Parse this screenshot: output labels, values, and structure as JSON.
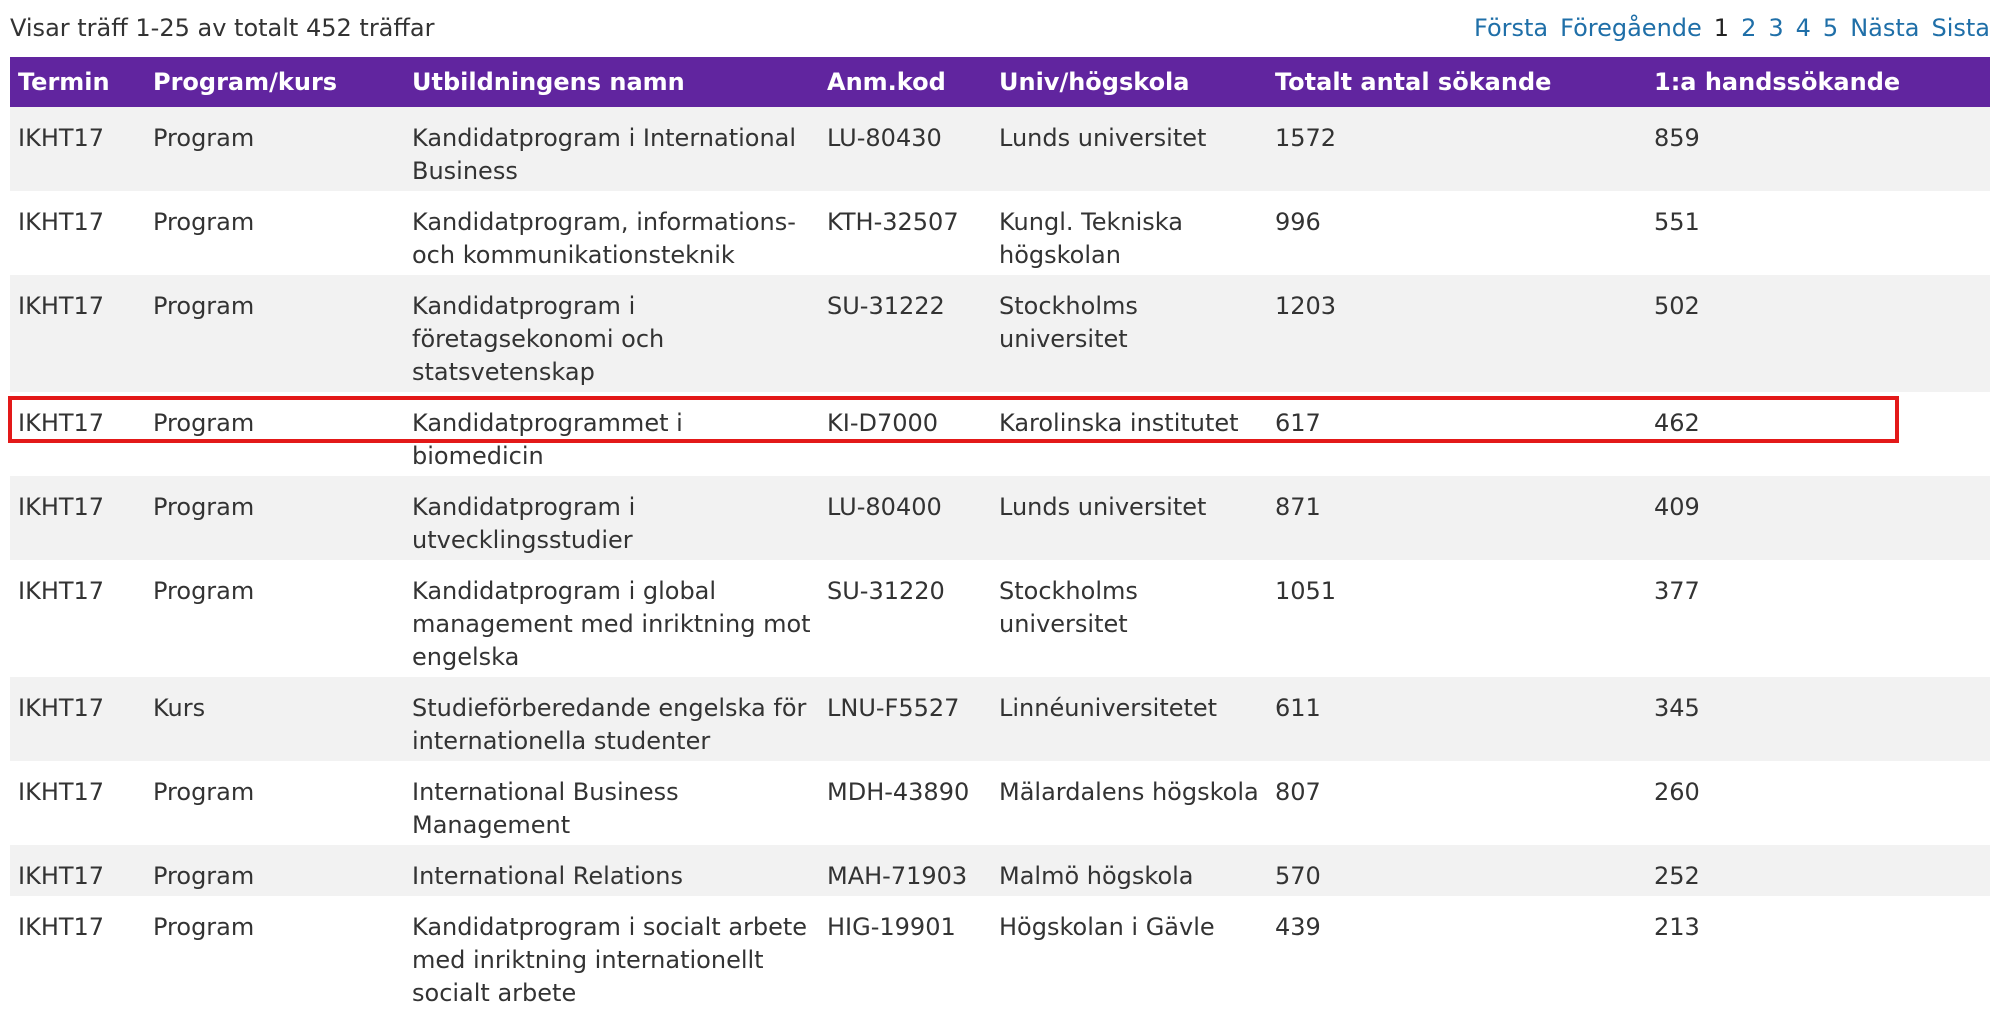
{
  "summary": "Visar träff 1-25 av totalt 452 träffar",
  "pager": {
    "first": "Första",
    "previous": "Föregående",
    "current": "1",
    "pages": [
      "2",
      "3",
      "4",
      "5"
    ],
    "next": "Nästa",
    "last": "Sista"
  },
  "colors": {
    "header_bg": "#61259f",
    "link": "#1f6fa8",
    "highlight": "#e31919",
    "row_alt": "#f2f2f2"
  },
  "table": {
    "headers": [
      "Termin",
      "Program/kurs",
      "Utbildningens namn",
      "Anm.kod",
      "Univ/högskola",
      "Totalt antal sökande",
      "1:a handssökande"
    ],
    "rows": [
      [
        "IKHT17",
        "Program",
        "Kandidatprogram i International Business",
        "LU-80430",
        "Lunds universitet",
        "1572",
        "859"
      ],
      [
        "IKHT17",
        "Program",
        "Kandidatprogram, informations- och kommunikationsteknik",
        "KTH-32507",
        "Kungl. Tekniska högskolan",
        "996",
        "551"
      ],
      [
        "IKHT17",
        "Program",
        "Kandidatprogram i företagsekonomi och statsvetenskap",
        "SU-31222",
        "Stockholms universitet",
        "1203",
        "502"
      ],
      [
        "IKHT17",
        "Program",
        "Kandidatprogrammet i biomedicin",
        "KI-D7000",
        "Karolinska institutet",
        "617",
        "462"
      ],
      [
        "IKHT17",
        "Program",
        "Kandidatprogram i utvecklingsstudier",
        "LU-80400",
        "Lunds universitet",
        "871",
        "409"
      ],
      [
        "IKHT17",
        "Program",
        "Kandidatprogram i global management med inriktning mot engelska",
        "SU-31220",
        "Stockholms universitet",
        "1051",
        "377"
      ],
      [
        "IKHT17",
        "Kurs",
        "Studieförberedande engelska för internationella studenter",
        "LNU-F5527",
        "Linnéuniversitetet",
        "611",
        "345"
      ],
      [
        "IKHT17",
        "Program",
        "International Business Management",
        "MDH-43890",
        "Mälardalens högskola",
        "807",
        "260"
      ],
      [
        "IKHT17",
        "Program",
        "International Relations",
        "MAH-71903",
        "Malmö högskola",
        "570",
        "252"
      ],
      [
        "IKHT17",
        "Program",
        "Kandidatprogram i socialt arbete med inriktning internationellt socialt arbete",
        "HIG-19901",
        "Högskolan i Gävle",
        "439",
        "213"
      ]
    ],
    "highlighted_row": 3
  }
}
